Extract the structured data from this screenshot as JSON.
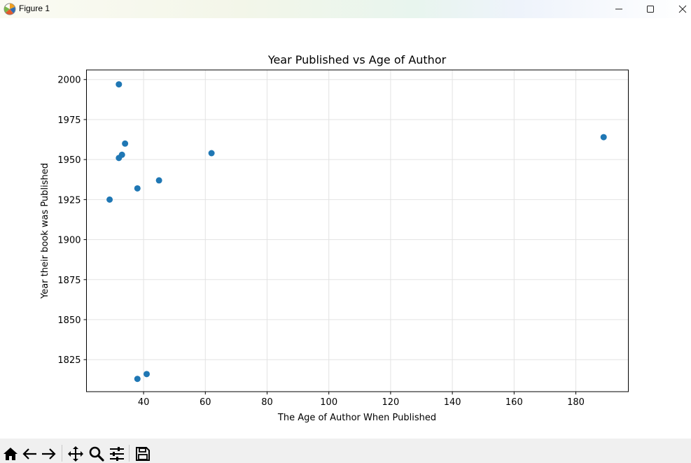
{
  "window": {
    "title": "Figure 1",
    "app_icon": "matplotlib-figure-icon",
    "controls": [
      "minimize-icon",
      "maximize-icon",
      "close-icon"
    ]
  },
  "toolbar": {
    "tools": [
      "home-icon",
      "back-arrow-icon",
      "forward-arrow-icon",
      "pan-move-icon",
      "zoom-magnifier-icon",
      "configure-sliders-icon",
      "save-disk-icon"
    ]
  },
  "chart_data": {
    "type": "scatter",
    "title": "Year Published vs Age of Author",
    "xlabel": "The Age of Author When Published",
    "ylabel": "Year their book was Published",
    "xlim": [
      21.5,
      197
    ],
    "ylim": [
      1805,
      2006
    ],
    "xticks": [
      40,
      60,
      80,
      100,
      120,
      140,
      160,
      180
    ],
    "yticks": [
      1825,
      1850,
      1875,
      1900,
      1925,
      1950,
      1975,
      2000
    ],
    "grid": true,
    "marker_color": "#1f77b4",
    "points": [
      {
        "x": 32,
        "y": 1997
      },
      {
        "x": 34,
        "y": 1960
      },
      {
        "x": 33,
        "y": 1953
      },
      {
        "x": 32,
        "y": 1951
      },
      {
        "x": 62,
        "y": 1954
      },
      {
        "x": 45,
        "y": 1937
      },
      {
        "x": 38,
        "y": 1932
      },
      {
        "x": 29,
        "y": 1925
      },
      {
        "x": 41,
        "y": 1816
      },
      {
        "x": 38,
        "y": 1813
      },
      {
        "x": 189,
        "y": 1964
      }
    ]
  }
}
